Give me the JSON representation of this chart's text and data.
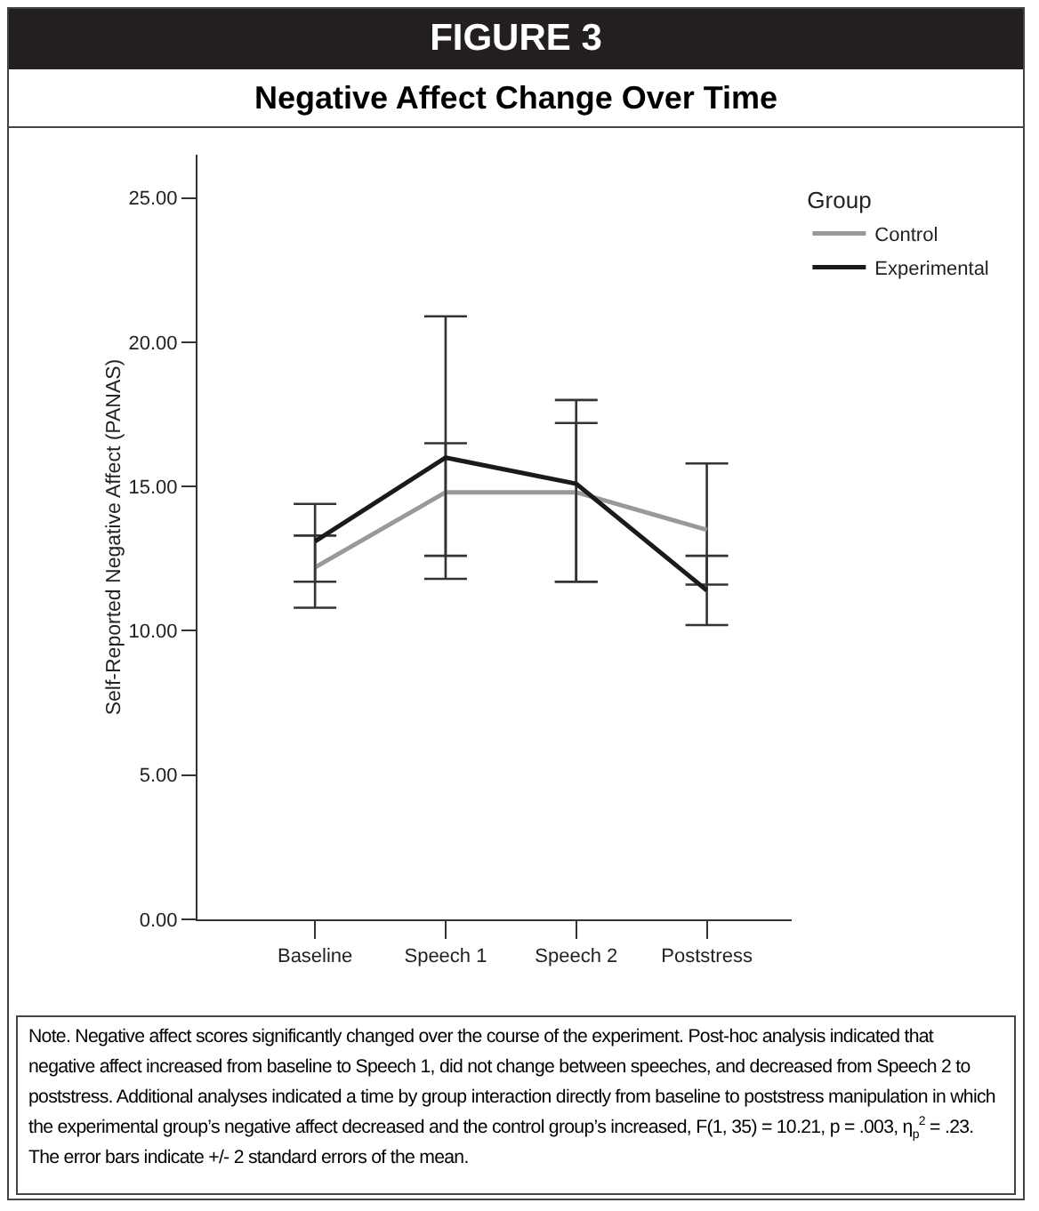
{
  "chart_data": {
    "type": "line",
    "title": "FIGURE 3",
    "subtitle": "Negative Affect Change Over Time",
    "ylabel": "Self-Reported Negative Affect (PANAS)",
    "legend_title": "Group",
    "categories": [
      "Baseline",
      "Speech 1",
      "Speech 2",
      "Poststress"
    ],
    "series": [
      {
        "name": "Control",
        "color": "#999999",
        "values": [
          12.2,
          14.8,
          14.8,
          13.5
        ],
        "errors": [
          [
            10.8,
            13.3
          ],
          [
            11.8,
            16.5
          ],
          [
            11.7,
            17.2
          ],
          [
            11.6,
            15.8
          ]
        ]
      },
      {
        "name": "Experimental",
        "color": "#1a1a1a",
        "values": [
          13.1,
          16.0,
          15.1,
          11.4
        ],
        "errors": [
          [
            11.7,
            14.4
          ],
          [
            12.6,
            20.9
          ],
          [
            11.7,
            18.0
          ],
          [
            10.2,
            12.6
          ]
        ]
      }
    ],
    "ylim": [
      0,
      26.5
    ],
    "yticks": [
      {
        "value": 0,
        "label": "0.00"
      },
      {
        "value": 5,
        "label": "5.00"
      },
      {
        "value": 10,
        "label": "10.00"
      },
      {
        "value": 15,
        "label": "15.00"
      },
      {
        "value": 20,
        "label": "20.00"
      },
      {
        "value": 25,
        "label": "25.00"
      }
    ],
    "grid": false,
    "legend": "top right",
    "marker": "none",
    "line_style": "solid",
    "annotations": [
      "Note. Negative affect scores significantly changed over the course of the experiment. Post-hoc analysis indicated that negative affect increased from baseline to Speech 1, did not change between speeches, and decreased from Speech 2 to poststress. Additional analyses indicated a time by group interaction directly from baseline to poststress manipulation in which the experimental group’s negative affect decreased and the control group’s increased, F(1, 35) = 10.21, p = .003, η$_{p}$$^{2}$ = .23. The error bars indicate +/- 2 standard errors of the mean."
    ]
  }
}
